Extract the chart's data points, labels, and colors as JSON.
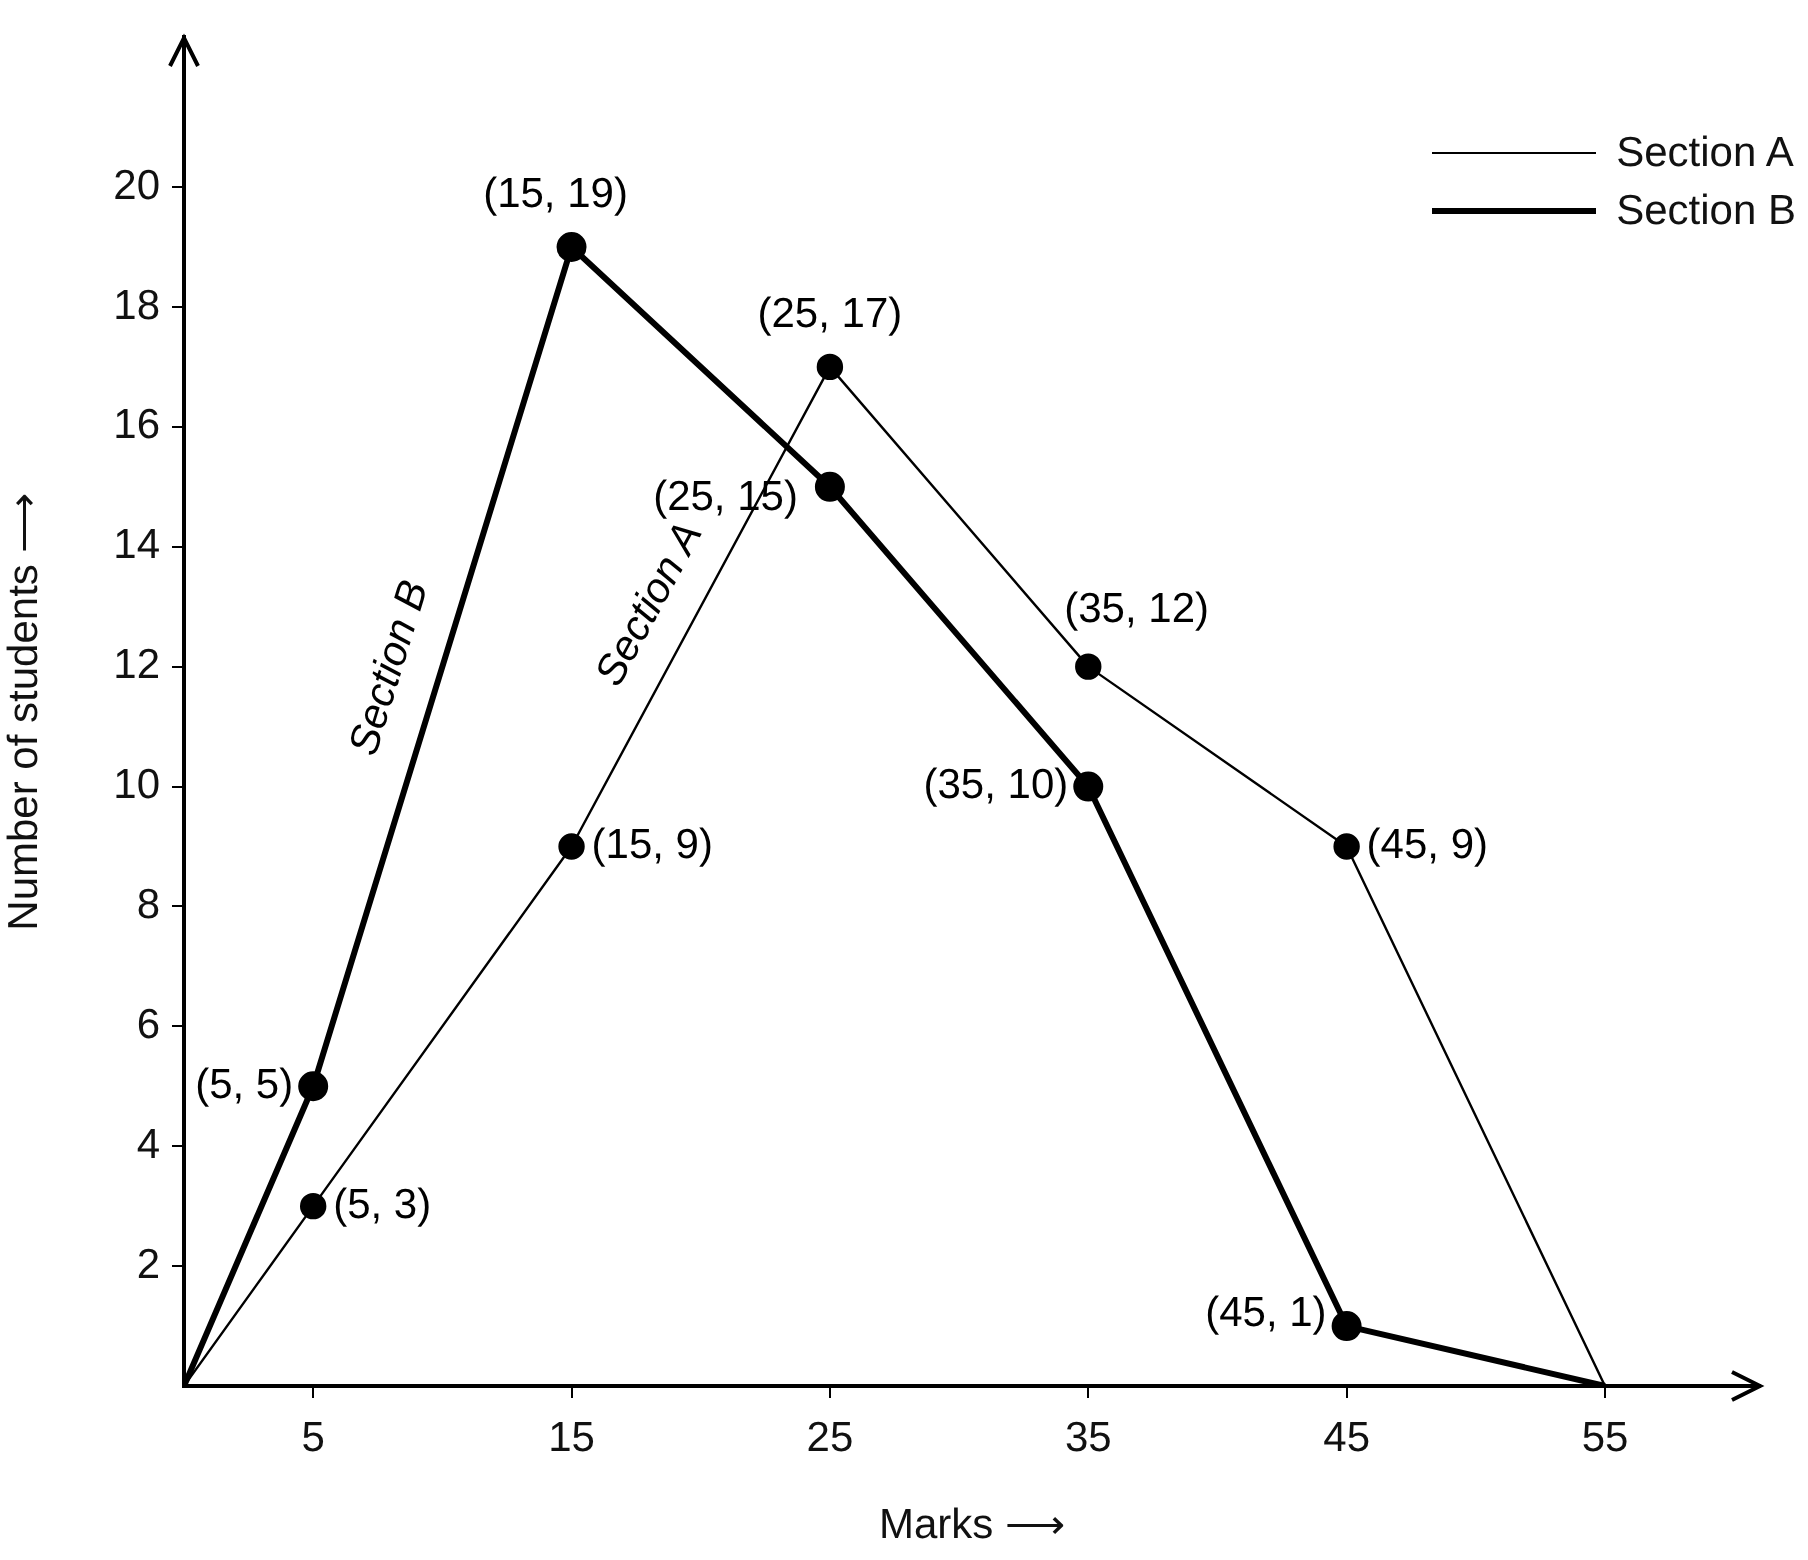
{
  "chart_data": {
    "type": "line",
    "xlabel": "Marks ⟶",
    "ylabel": "Number of students ⟶",
    "x": [
      0,
      5,
      15,
      25,
      35,
      45,
      55
    ],
    "series": [
      {
        "name": "Section A",
        "color": "#000000",
        "values": [
          0,
          3,
          9,
          17,
          12,
          9,
          0
        ]
      },
      {
        "name": "Section B",
        "color": "#000000",
        "values": [
          0,
          5,
          19,
          15,
          10,
          1,
          0
        ]
      }
    ],
    "xlim": [
      0,
      61
    ],
    "xticks": [
      5,
      15,
      25,
      35,
      45,
      55
    ],
    "ylim": [
      0,
      22.5
    ],
    "yticks": [
      2,
      4,
      6,
      8,
      10,
      12,
      14,
      16,
      18,
      20
    ],
    "grid": false,
    "legend": "top right",
    "marker": "circle",
    "line_style": "solid",
    "annotations": [
      {
        "text": "(5, 3)",
        "x": 5,
        "y": 3
      },
      {
        "text": "(15, 9)",
        "x": 15,
        "y": 9
      },
      {
        "text": "(25, 17)",
        "x": 25,
        "y": 17
      },
      {
        "text": "(35, 12)",
        "x": 35,
        "y": 12
      },
      {
        "text": "(45, 9)",
        "x": 45,
        "y": 9
      },
      {
        "text": "(5, 5)",
        "x": 5,
        "y": 5
      },
      {
        "text": "(15, 19)",
        "x": 15,
        "y": 19
      },
      {
        "text": "(25, 15)",
        "x": 25,
        "y": 15
      },
      {
        "text": "(35, 10)",
        "x": 35,
        "y": 10
      },
      {
        "text": "(45, 1)",
        "x": 45,
        "y": 1
      }
    ]
  }
}
